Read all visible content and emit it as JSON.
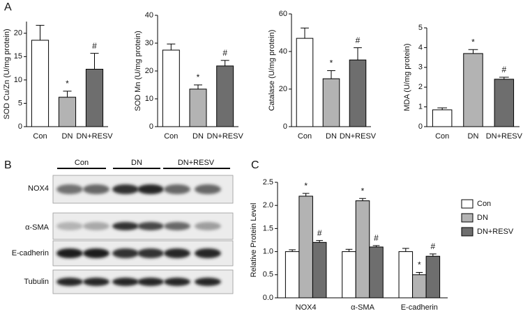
{
  "panel_labels": [
    "A",
    "B",
    "C"
  ],
  "blot": {
    "groups": [
      "Con",
      "DN",
      "DN+RESV"
    ],
    "rows": [
      "NOX4",
      "α-SMA",
      "E-cadherin",
      "Tubulin"
    ]
  },
  "chart_data": [
    {
      "type": "bar",
      "y_label": "SOD Cu/Zn (U/mg protein)",
      "categories": [
        "Con",
        "DN",
        "DN+RESV"
      ],
      "values": [
        18.5,
        6.3,
        12.3
      ],
      "errors": [
        3.2,
        1.3,
        3.4
      ],
      "annotations": [
        null,
        "*",
        "#"
      ],
      "colors": [
        "#ffffff",
        "#b3b3b3",
        "#6e6e6e"
      ],
      "ylim": [
        0,
        22.5
      ],
      "yticks": [
        0,
        5,
        10,
        15,
        20
      ]
    },
    {
      "type": "bar",
      "y_label": "SOD Mn (U/mg protein)",
      "categories": [
        "Con",
        "DN",
        "DN+RESV"
      ],
      "values": [
        27.5,
        13.5,
        21.8
      ],
      "errors": [
        2.2,
        1.5,
        2.0
      ],
      "annotations": [
        null,
        "*",
        "#"
      ],
      "colors": [
        "#ffffff",
        "#b3b3b3",
        "#6e6e6e"
      ],
      "ylim": [
        0,
        40
      ],
      "yticks": [
        0,
        10,
        20,
        30,
        40
      ]
    },
    {
      "type": "bar",
      "y_label": "Catalase (U/mg protein)",
      "categories": [
        "Con",
        "DN",
        "DN+RESV"
      ],
      "values": [
        47,
        25.5,
        35.5
      ],
      "errors": [
        5.5,
        4.3,
        6.5
      ],
      "annotations": [
        null,
        "*",
        "#"
      ],
      "colors": [
        "#ffffff",
        "#b3b3b3",
        "#6e6e6e"
      ],
      "ylim": [
        0,
        60
      ],
      "yticks": [
        0,
        20,
        40,
        60
      ]
    },
    {
      "type": "bar",
      "y_label": "MDA (U/mg protein)",
      "categories": [
        "Con",
        "DN",
        "DN+RESV"
      ],
      "values": [
        0.85,
        3.7,
        2.4
      ],
      "errors": [
        0.1,
        0.2,
        0.1
      ],
      "annotations": [
        null,
        "*",
        "#"
      ],
      "colors": [
        "#ffffff",
        "#b3b3b3",
        "#6e6e6e"
      ],
      "ylim": [
        0,
        5
      ],
      "yticks": [
        0,
        1,
        2,
        3,
        4,
        5
      ]
    },
    {
      "type": "bar",
      "y_label": "Relative Protein Level",
      "categories": [
        "NOX4",
        "α-SMA",
        "E-cadherin"
      ],
      "series": [
        {
          "name": "Con",
          "color": "#ffffff",
          "values": [
            1.0,
            1.0,
            1.0
          ],
          "errors": [
            0.04,
            0.05,
            0.07
          ],
          "annotations": [
            null,
            null,
            null
          ]
        },
        {
          "name": "DN",
          "color": "#b3b3b3",
          "values": [
            2.2,
            2.1,
            0.5
          ],
          "errors": [
            0.06,
            0.05,
            0.05
          ],
          "annotations": [
            "*",
            "*",
            "*"
          ]
        },
        {
          "name": "DN+RESV",
          "color": "#6e6e6e",
          "values": [
            1.2,
            1.1,
            0.9
          ],
          "errors": [
            0.04,
            0.03,
            0.05
          ],
          "annotations": [
            "#",
            "#",
            "#"
          ]
        }
      ],
      "ylim": [
        0,
        2.5
      ],
      "yticks": [
        {
          "value": 0,
          "label": "0.0"
        },
        0.5,
        {
          "value": 1,
          "label": "1.0"
        },
        1.5,
        {
          "value": 2,
          "label": "2.0"
        },
        2.5
      ],
      "legend": "right"
    }
  ]
}
